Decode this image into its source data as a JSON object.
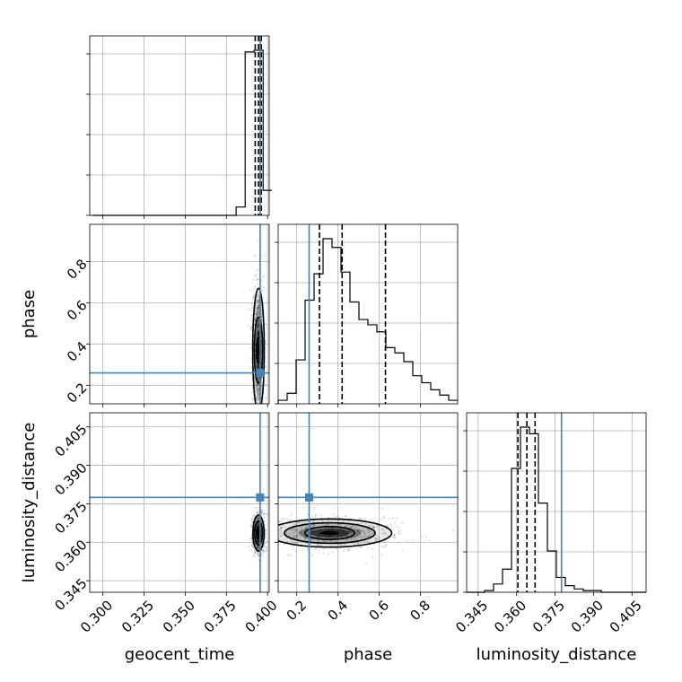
{
  "chart_data": {
    "type": "corner",
    "truth_color": "#4682b4",
    "parameters": [
      {
        "name": "geocent_time",
        "xlabel": "geocent_time",
        "range": [
          0.292,
          0.401
        ],
        "ticks": [
          0.3,
          0.325,
          0.35,
          0.375,
          0.4
        ],
        "tick_labels": [
          "0.300",
          "0.325",
          "0.350",
          "0.375",
          "0.400"
        ],
        "truth": 0.3955,
        "quantiles": [
          0.3925,
          0.3945,
          0.3962
        ],
        "hist": {
          "edges": [
            0.2937,
            0.2992,
            0.3046,
            0.3101,
            0.3155,
            0.321,
            0.3264,
            0.3319,
            0.3373,
            0.3428,
            0.3482,
            0.3537,
            0.3591,
            0.3646,
            0.37,
            0.3755,
            0.3809,
            0.3864,
            0.3918,
            0.3973,
            0.4027
          ],
          "counts": [
            0,
            0,
            0,
            0,
            0,
            0,
            0,
            0,
            0,
            0,
            0,
            0,
            0,
            0,
            0,
            0,
            0.05,
            0.98,
            0.99,
            0.15
          ]
        }
      },
      {
        "name": "phase",
        "ylabel": "phase",
        "xlabel": "phase",
        "range": [
          0.11,
          0.98
        ],
        "ticks": [
          0.2,
          0.4,
          0.6,
          0.8
        ],
        "tick_labels": [
          "0.2",
          "0.4",
          "0.6",
          "0.8"
        ],
        "truth": 0.26,
        "quantiles": [
          0.31,
          0.42,
          0.63
        ],
        "hist": {
          "edges": [
            0.11,
            0.1535,
            0.197,
            0.2405,
            0.284,
            0.3275,
            0.371,
            0.4145,
            0.458,
            0.5015,
            0.545,
            0.5885,
            0.632,
            0.6755,
            0.719,
            0.7625,
            0.806,
            0.8495,
            0.893,
            0.9365,
            0.98
          ],
          "counts": [
            0.02,
            0.06,
            0.25,
            0.59,
            0.74,
            0.94,
            0.89,
            0.75,
            0.58,
            0.48,
            0.45,
            0.41,
            0.32,
            0.29,
            0.24,
            0.16,
            0.12,
            0.08,
            0.05,
            0.02
          ]
        }
      },
      {
        "name": "luminosity_distance",
        "ylabel": "luminosity_distance",
        "xlabel": "luminosity_distance",
        "range": [
          0.3405,
          0.4105
        ],
        "ticks": [
          0.345,
          0.36,
          0.375,
          0.39,
          0.405
        ],
        "tick_labels": [
          "0.345",
          "0.360",
          "0.375",
          "0.390",
          "0.405"
        ],
        "truth": 0.3775,
        "quantiles": [
          0.3605,
          0.364,
          0.3672
        ],
        "hist": {
          "edges": [
            0.3405,
            0.344,
            0.3475,
            0.351,
            0.3545,
            0.358,
            0.3615,
            0.365,
            0.3685,
            0.372,
            0.3755,
            0.379,
            0.3825,
            0.386,
            0.3895,
            0.393,
            0.3965,
            0.4,
            0.4035,
            0.407,
            0.4105
          ],
          "counts": [
            0,
            0,
            0.01,
            0.05,
            0.14,
            0.75,
            1.0,
            0.96,
            0.54,
            0.25,
            0.09,
            0.04,
            0.02,
            0.01,
            0.01,
            0,
            0,
            0,
            0,
            0
          ]
        }
      }
    ],
    "pairs": [
      {
        "x": "geocent_time",
        "y": "phase",
        "center": [
          0.3945,
          0.37
        ],
        "contours": [
          {
            "rx": 0.0012,
            "ry": 0.06
          },
          {
            "rx": 0.0025,
            "ry": 0.16
          },
          {
            "rx": 0.0035,
            "ry": 0.3
          }
        ]
      },
      {
        "x": "geocent_time",
        "y": "luminosity_distance",
        "center": [
          0.3945,
          0.3636
        ],
        "contours": [
          {
            "rx": 0.0012,
            "ry": 0.0022
          },
          {
            "rx": 0.0024,
            "ry": 0.0046
          },
          {
            "rx": 0.0034,
            "ry": 0.007
          }
        ]
      },
      {
        "x": "phase",
        "y": "luminosity_distance",
        "center": [
          0.36,
          0.3636
        ],
        "contours": [
          {
            "rx": 0.12,
            "ry": 0.0025
          },
          {
            "rx": 0.22,
            "ry": 0.004
          },
          {
            "rx": 0.3,
            "ry": 0.0055
          }
        ]
      }
    ]
  }
}
